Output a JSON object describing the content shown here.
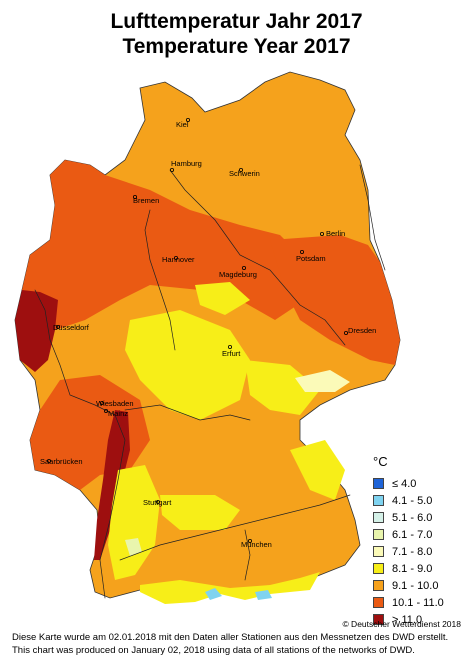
{
  "title_de": "Lufttemperatur Jahr 2017",
  "title_en": "Temperature Year 2017",
  "legend": {
    "unit": "°C",
    "items": [
      {
        "label": "≤  4.0",
        "color": "#1f64d8"
      },
      {
        "label": "4.1 - 5.0",
        "color": "#7fd3f0"
      },
      {
        "label": "5.1 - 6.0",
        "color": "#d5f1e8"
      },
      {
        "label": "6.1 - 7.0",
        "color": "#e9f5ad"
      },
      {
        "label": "7.1 - 8.0",
        "color": "#fbfab8"
      },
      {
        "label": "8.1 - 9.0",
        "color": "#f7ee18"
      },
      {
        "label": "9.1 - 10.0",
        "color": "#f7a21c"
      },
      {
        "label": "10.1 - 11.0",
        "color": "#ea5a13"
      },
      {
        "label": "> 11.0",
        "color": "#9e0f0f"
      }
    ]
  },
  "cities": {
    "kiel": "Kiel",
    "hamburg": "Hamburg",
    "schwerin": "Schwerin",
    "bremen": "Bremen",
    "berlin": "Berlin",
    "potsdam": "Potsdam",
    "hannover": "Hannover",
    "magdeburg": "Magdeburg",
    "duesseldorf": "Düsseldorf",
    "dresden": "Dresden",
    "erfurt": "Erfurt",
    "wiesbaden": "Wiesbaden",
    "mainz": "Mainz",
    "saarbruecken": "Saarbrücken",
    "stuttgart": "Stuttgart",
    "muenchen": "München"
  },
  "copyright": "© Deutscher Wetterdienst 2018",
  "note_de": "Diese Karte wurde am 02.01.2018 mit den Daten aller Stationen aus den Messnetzen des DWD erstellt.",
  "note_en": "This chart was produced on January 02, 2018 using data of all stations of the networks of DWD."
}
